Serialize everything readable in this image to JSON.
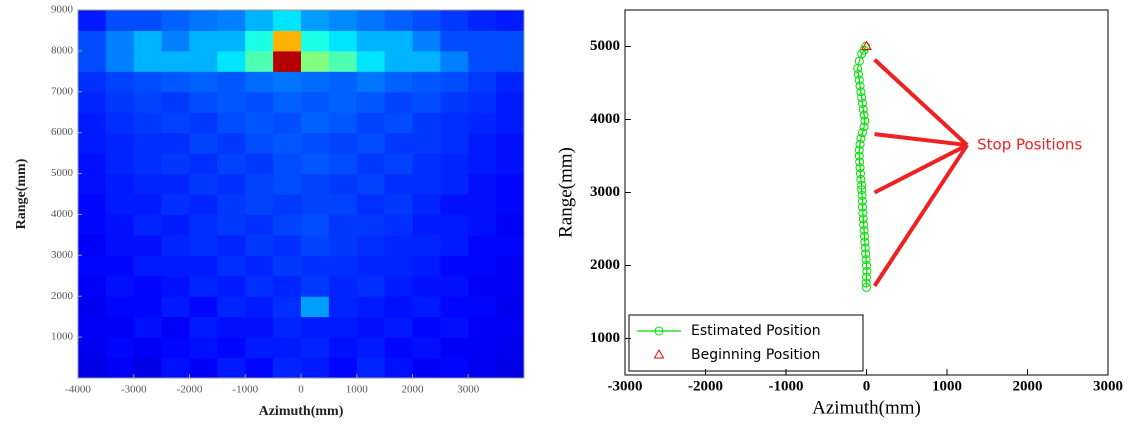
{
  "chart_data": [
    {
      "type": "heatmap",
      "x_label": "Azimuth(mm)",
      "y_label": "Range(mm)",
      "xlim": [
        -4000,
        4000
      ],
      "ylim": [
        0,
        9000
      ],
      "xticks": [
        -4000,
        -3000,
        -2000,
        -1000,
        0,
        1000,
        2000,
        3000
      ],
      "yticks": [
        1000,
        2000,
        3000,
        4000,
        5000,
        6000,
        7000,
        8000,
        9000
      ],
      "colormap": "jet",
      "xbins": [
        -4000,
        -3500,
        -3000,
        -2500,
        -2000,
        -1500,
        -1000,
        -500,
        0,
        500,
        1000,
        1500,
        2000,
        2500,
        3000,
        3500,
        4000
      ],
      "ybins": [
        0,
        500,
        1000,
        1500,
        2000,
        2500,
        3000,
        3500,
        4000,
        4500,
        5000,
        5500,
        6000,
        6500,
        7000,
        7500,
        8000,
        8500,
        9000
      ],
      "values": [
        [
          0.1,
          0.12,
          0.1,
          0.14,
          0.12,
          0.15,
          0.13,
          0.16,
          0.15,
          0.13,
          0.16,
          0.14,
          0.12,
          0.13,
          0.11,
          0.1
        ],
        [
          0.11,
          0.13,
          0.12,
          0.13,
          0.14,
          0.13,
          0.15,
          0.15,
          0.16,
          0.14,
          0.15,
          0.13,
          0.14,
          0.12,
          0.12,
          0.11
        ],
        [
          0.12,
          0.12,
          0.14,
          0.12,
          0.15,
          0.14,
          0.14,
          0.16,
          0.15,
          0.15,
          0.14,
          0.15,
          0.13,
          0.14,
          0.12,
          0.12
        ],
        [
          0.11,
          0.13,
          0.13,
          0.15,
          0.13,
          0.16,
          0.15,
          0.17,
          0.28,
          0.16,
          0.15,
          0.14,
          0.15,
          0.13,
          0.13,
          0.11
        ],
        [
          0.12,
          0.14,
          0.13,
          0.14,
          0.16,
          0.15,
          0.17,
          0.16,
          0.18,
          0.16,
          0.17,
          0.15,
          0.14,
          0.14,
          0.12,
          0.12
        ],
        [
          0.13,
          0.13,
          0.15,
          0.15,
          0.15,
          0.17,
          0.16,
          0.18,
          0.17,
          0.17,
          0.16,
          0.16,
          0.15,
          0.13,
          0.13,
          0.12
        ],
        [
          0.12,
          0.14,
          0.14,
          0.16,
          0.17,
          0.16,
          0.18,
          0.17,
          0.19,
          0.18,
          0.17,
          0.16,
          0.16,
          0.15,
          0.13,
          0.13
        ],
        [
          0.13,
          0.14,
          0.16,
          0.15,
          0.17,
          0.18,
          0.17,
          0.19,
          0.2,
          0.18,
          0.18,
          0.17,
          0.15,
          0.15,
          0.14,
          0.12
        ],
        [
          0.13,
          0.15,
          0.15,
          0.17,
          0.16,
          0.18,
          0.19,
          0.18,
          0.19,
          0.19,
          0.17,
          0.18,
          0.16,
          0.14,
          0.14,
          0.13
        ],
        [
          0.14,
          0.15,
          0.16,
          0.16,
          0.18,
          0.17,
          0.19,
          0.2,
          0.19,
          0.18,
          0.19,
          0.17,
          0.17,
          0.16,
          0.14,
          0.13
        ],
        [
          0.14,
          0.16,
          0.17,
          0.18,
          0.17,
          0.19,
          0.18,
          0.2,
          0.21,
          0.2,
          0.18,
          0.19,
          0.17,
          0.16,
          0.15,
          0.14
        ],
        [
          0.15,
          0.16,
          0.17,
          0.17,
          0.19,
          0.18,
          0.2,
          0.21,
          0.2,
          0.19,
          0.2,
          0.18,
          0.18,
          0.17,
          0.15,
          0.14
        ],
        [
          0.15,
          0.17,
          0.18,
          0.19,
          0.18,
          0.2,
          0.21,
          0.2,
          0.22,
          0.21,
          0.19,
          0.2,
          0.18,
          0.17,
          0.16,
          0.15
        ],
        [
          0.16,
          0.18,
          0.19,
          0.18,
          0.2,
          0.21,
          0.2,
          0.22,
          0.21,
          0.22,
          0.21,
          0.19,
          0.2,
          0.18,
          0.17,
          0.15
        ],
        [
          0.17,
          0.19,
          0.2,
          0.21,
          0.22,
          0.21,
          0.23,
          0.24,
          0.23,
          0.22,
          0.24,
          0.22,
          0.21,
          0.2,
          0.18,
          0.16
        ],
        [
          0.2,
          0.25,
          0.3,
          0.3,
          0.3,
          0.35,
          0.45,
          0.95,
          0.5,
          0.45,
          0.35,
          0.3,
          0.3,
          0.25,
          0.2,
          0.2
        ],
        [
          0.2,
          0.25,
          0.3,
          0.25,
          0.3,
          0.3,
          0.4,
          0.7,
          0.4,
          0.35,
          0.3,
          0.3,
          0.25,
          0.2,
          0.2,
          0.2
        ],
        [
          0.15,
          0.2,
          0.2,
          0.22,
          0.24,
          0.25,
          0.3,
          0.35,
          0.28,
          0.26,
          0.24,
          0.22,
          0.2,
          0.18,
          0.16,
          0.15
        ]
      ]
    },
    {
      "type": "scatter",
      "x_label": "Azimuth(mm)",
      "y_label": "Range(mm)",
      "xlim": [
        -3000,
        3000
      ],
      "ylim": [
        500,
        5500
      ],
      "xticks": [
        -3000,
        -2000,
        -1000,
        0,
        1000,
        2000,
        3000
      ],
      "yticks": [
        1000,
        2000,
        3000,
        4000,
        5000
      ],
      "legend": "lower left",
      "series": [
        {
          "name": "Estimated Position",
          "color": "#00dd00",
          "marker": "circle",
          "line": true,
          "x": [
            -10,
            -30,
            -60,
            -90,
            -110,
            -100,
            -90,
            -80,
            -70,
            -60,
            -50,
            -40,
            -30,
            -20,
            -30,
            -50,
            -70,
            -80,
            -90,
            -90,
            -85,
            -80,
            -75,
            -70,
            -60,
            -60,
            -55,
            -50,
            -50,
            -45,
            -40,
            -35,
            -30,
            -25,
            -20,
            -15,
            -10,
            -5,
            0,
            5,
            0,
            -5,
            0
          ],
          "values": [
            5000,
            4950,
            4900,
            4800,
            4700,
            4620,
            4540,
            4460,
            4380,
            4300,
            4220,
            4140,
            4060,
            3980,
            3900,
            3820,
            3740,
            3660,
            3580,
            3500,
            3420,
            3340,
            3260,
            3180,
            3100,
            3040,
            2960,
            2880,
            2800,
            2720,
            2640,
            2560,
            2480,
            2400,
            2320,
            2240,
            2160,
            2080,
            2000,
            1920,
            1840,
            1760,
            1700
          ]
        },
        {
          "name": "Beginning Position",
          "color": "#ff0000",
          "marker": "triangle",
          "line": false,
          "x": [
            0
          ],
          "values": [
            5000
          ]
        }
      ],
      "annotation": {
        "text": "Stop Positions",
        "color": "#ee2222",
        "x": 1250,
        "y": 3650,
        "targets": {
          "x": [
            100,
            100,
            100,
            100
          ],
          "y": [
            4820,
            3800,
            3000,
            1720
          ]
        }
      }
    }
  ]
}
